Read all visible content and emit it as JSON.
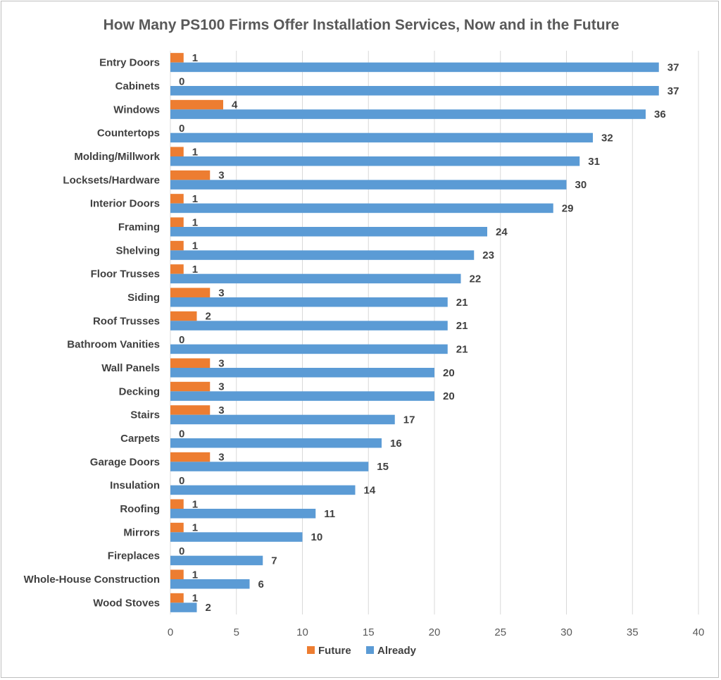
{
  "chart_data": {
    "type": "bar",
    "orientation": "horizontal",
    "title": "How Many PS100 Firms Offer Installation Services, Now and in the Future",
    "categories": [
      "Entry Doors",
      "Cabinets",
      "Windows",
      "Countertops",
      "Molding/Millwork",
      "Locksets/Hardware",
      "Interior Doors",
      "Framing",
      "Shelving",
      "Floor Trusses",
      "Siding",
      "Roof Trusses",
      "Bathroom Vanities",
      "Wall Panels",
      "Decking",
      "Stairs",
      "Carpets",
      "Garage Doors",
      "Insulation",
      "Roofing",
      "Mirrors",
      "Fireplaces",
      "Whole-House Construction",
      "Wood Stoves"
    ],
    "series": [
      {
        "name": "Future",
        "color": "#ed7d31",
        "values": [
          1,
          0,
          4,
          0,
          1,
          3,
          1,
          1,
          1,
          1,
          3,
          2,
          0,
          3,
          3,
          3,
          0,
          3,
          0,
          1,
          1,
          0,
          1,
          1
        ]
      },
      {
        "name": "Already",
        "color": "#5b9bd5",
        "values": [
          37,
          37,
          36,
          32,
          31,
          30,
          29,
          24,
          23,
          22,
          21,
          21,
          21,
          20,
          20,
          17,
          16,
          15,
          14,
          11,
          10,
          7,
          6,
          2
        ]
      }
    ],
    "xlim": [
      0,
      40
    ],
    "xticks": [
      "0",
      "5",
      "10",
      "15",
      "20",
      "25",
      "30",
      "35",
      "40"
    ],
    "grid": "vertical",
    "legend": "bottom"
  }
}
